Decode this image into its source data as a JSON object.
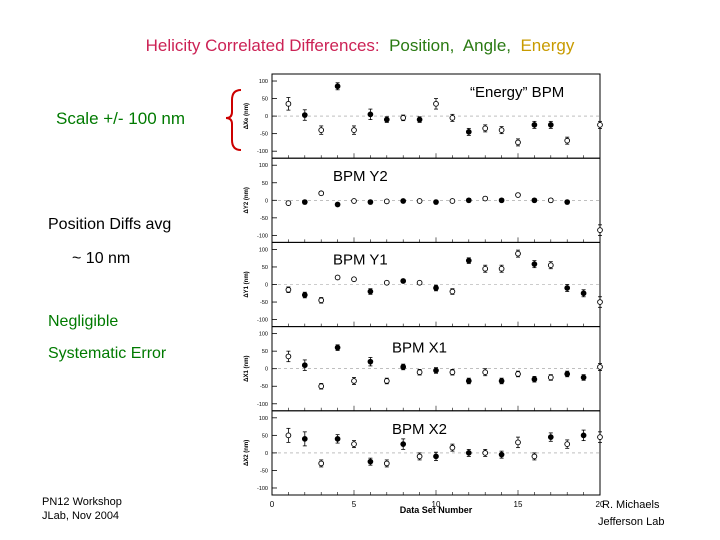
{
  "slide": {
    "title_part1": "Helicity Correlated Differences:",
    "title_part2": "Position,",
    "title_part3": "Angle,",
    "title_part4": "Energy",
    "scale_label": "Scale +/- 100 nm",
    "position_diffs": "Position Diffs avg",
    "approx_10nm": "~ 10 nm",
    "negligible": "Negligible",
    "systematic_error": "Systematic Error",
    "footer_left_line1": "PN12 Workshop",
    "footer_left_line2": "JLab, Nov 2004",
    "footer_right_line1": "R. Michaels",
    "footer_right_line2": "Jefferson Lab",
    "colors": {
      "title_pink": "#cc2255",
      "title_green": "#2a7a12",
      "title_gold": "#c89b00",
      "note_green": "#007a00",
      "bracket_red": "#cc0000"
    }
  },
  "chart_data": {
    "type": "scatter",
    "xlabel": "Data Set Number",
    "xlim": [
      0,
      20
    ],
    "x_ticks": [
      "0",
      "5",
      "10",
      "15",
      "20"
    ],
    "y_ticks": [
      "100",
      "50",
      "0",
      "-50",
      "-100"
    ],
    "ylim": [
      -120,
      120
    ],
    "panels": [
      {
        "annotation": "“Energy” BPM",
        "ylabel": "ΔXe (nm)",
        "points": [
          {
            "x": 1,
            "y": 35,
            "err": 18,
            "filled": false
          },
          {
            "x": 2,
            "y": 3,
            "err": 15,
            "filled": true
          },
          {
            "x": 3,
            "y": -40,
            "err": 12,
            "filled": false
          },
          {
            "x": 4,
            "y": 85,
            "err": 10,
            "filled": true
          },
          {
            "x": 5,
            "y": -40,
            "err": 12,
            "filled": false
          },
          {
            "x": 6,
            "y": 5,
            "err": 15,
            "filled": true
          },
          {
            "x": 7,
            "y": -10,
            "err": 8,
            "filled": true
          },
          {
            "x": 8,
            "y": -5,
            "err": 8,
            "filled": false
          },
          {
            "x": 9,
            "y": -10,
            "err": 8,
            "filled": true
          },
          {
            "x": 10,
            "y": 35,
            "err": 15,
            "filled": false
          },
          {
            "x": 11,
            "y": -5,
            "err": 10,
            "filled": false
          },
          {
            "x": 12,
            "y": -45,
            "err": 10,
            "filled": true
          },
          {
            "x": 13,
            "y": -35,
            "err": 10,
            "filled": false
          },
          {
            "x": 14,
            "y": -40,
            "err": 10,
            "filled": false
          },
          {
            "x": 15,
            "y": -75,
            "err": 10,
            "filled": false
          },
          {
            "x": 16,
            "y": -25,
            "err": 10,
            "filled": true
          },
          {
            "x": 17,
            "y": -25,
            "err": 10,
            "filled": true
          },
          {
            "x": 18,
            "y": -70,
            "err": 10,
            "filled": false
          },
          {
            "x": 20,
            "y": -25,
            "err": 10,
            "filled": false
          }
        ]
      },
      {
        "annotation": "BPM Y2",
        "ylabel": "ΔY2 (nm)",
        "points": [
          {
            "x": 1,
            "y": -8,
            "err": 5,
            "filled": false
          },
          {
            "x": 2,
            "y": -5,
            "err": 5,
            "filled": true
          },
          {
            "x": 3,
            "y": 20,
            "err": 5,
            "filled": false
          },
          {
            "x": 4,
            "y": -12,
            "err": 5,
            "filled": true
          },
          {
            "x": 5,
            "y": -2,
            "err": 5,
            "filled": false
          },
          {
            "x": 6,
            "y": -5,
            "err": 5,
            "filled": true
          },
          {
            "x": 7,
            "y": -3,
            "err": 5,
            "filled": false
          },
          {
            "x": 8,
            "y": -2,
            "err": 5,
            "filled": true
          },
          {
            "x": 9,
            "y": -2,
            "err": 5,
            "filled": false
          },
          {
            "x": 10,
            "y": -5,
            "err": 5,
            "filled": true
          },
          {
            "x": 11,
            "y": -2,
            "err": 5,
            "filled": false
          },
          {
            "x": 12,
            "y": 0,
            "err": 5,
            "filled": true
          },
          {
            "x": 13,
            "y": 5,
            "err": 5,
            "filled": false
          },
          {
            "x": 14,
            "y": 0,
            "err": 5,
            "filled": true
          },
          {
            "x": 15,
            "y": 15,
            "err": 5,
            "filled": false
          },
          {
            "x": 16,
            "y": 0,
            "err": 5,
            "filled": true
          },
          {
            "x": 17,
            "y": 0,
            "err": 5,
            "filled": false
          },
          {
            "x": 18,
            "y": -5,
            "err": 5,
            "filled": true
          },
          {
            "x": 20,
            "y": -85,
            "err": 15,
            "filled": false
          }
        ]
      },
      {
        "annotation": "BPM Y1",
        "ylabel": "ΔY1 (nm)",
        "points": [
          {
            "x": 1,
            "y": -15,
            "err": 8,
            "filled": false
          },
          {
            "x": 2,
            "y": -30,
            "err": 8,
            "filled": true
          },
          {
            "x": 3,
            "y": -45,
            "err": 8,
            "filled": false
          },
          {
            "x": 4,
            "y": 20,
            "err": 5,
            "filled": false
          },
          {
            "x": 5,
            "y": 15,
            "err": 5,
            "filled": false
          },
          {
            "x": 6,
            "y": -20,
            "err": 8,
            "filled": true
          },
          {
            "x": 7,
            "y": 5,
            "err": 5,
            "filled": false
          },
          {
            "x": 8,
            "y": 10,
            "err": 5,
            "filled": true
          },
          {
            "x": 9,
            "y": 5,
            "err": 5,
            "filled": false
          },
          {
            "x": 10,
            "y": -10,
            "err": 8,
            "filled": true
          },
          {
            "x": 11,
            "y": -20,
            "err": 8,
            "filled": false
          },
          {
            "x": 12,
            "y": 68,
            "err": 8,
            "filled": true
          },
          {
            "x": 13,
            "y": 45,
            "err": 10,
            "filled": false
          },
          {
            "x": 14,
            "y": 45,
            "err": 10,
            "filled": false
          },
          {
            "x": 15,
            "y": 88,
            "err": 10,
            "filled": false
          },
          {
            "x": 16,
            "y": 58,
            "err": 10,
            "filled": true
          },
          {
            "x": 17,
            "y": 55,
            "err": 10,
            "filled": false
          },
          {
            "x": 18,
            "y": -10,
            "err": 10,
            "filled": true
          },
          {
            "x": 19,
            "y": -25,
            "err": 10,
            "filled": true
          },
          {
            "x": 20,
            "y": -50,
            "err": 15,
            "filled": false
          }
        ]
      },
      {
        "annotation": "BPM X1",
        "ylabel": "ΔX1 (nm)",
        "points": [
          {
            "x": 1,
            "y": 35,
            "err": 15,
            "filled": false
          },
          {
            "x": 2,
            "y": 10,
            "err": 15,
            "filled": true
          },
          {
            "x": 3,
            "y": -50,
            "err": 8,
            "filled": false
          },
          {
            "x": 4,
            "y": 60,
            "err": 8,
            "filled": true
          },
          {
            "x": 5,
            "y": -35,
            "err": 10,
            "filled": false
          },
          {
            "x": 6,
            "y": 20,
            "err": 12,
            "filled": true
          },
          {
            "x": 7,
            "y": -35,
            "err": 8,
            "filled": false
          },
          {
            "x": 8,
            "y": 5,
            "err": 8,
            "filled": true
          },
          {
            "x": 9,
            "y": -10,
            "err": 8,
            "filled": false
          },
          {
            "x": 10,
            "y": -5,
            "err": 8,
            "filled": true
          },
          {
            "x": 11,
            "y": -10,
            "err": 8,
            "filled": false
          },
          {
            "x": 12,
            "y": -35,
            "err": 8,
            "filled": true
          },
          {
            "x": 13,
            "y": -10,
            "err": 10,
            "filled": false
          },
          {
            "x": 14,
            "y": -35,
            "err": 8,
            "filled": true
          },
          {
            "x": 15,
            "y": -15,
            "err": 8,
            "filled": false
          },
          {
            "x": 16,
            "y": -30,
            "err": 8,
            "filled": true
          },
          {
            "x": 17,
            "y": -25,
            "err": 8,
            "filled": false
          },
          {
            "x": 18,
            "y": -15,
            "err": 8,
            "filled": true
          },
          {
            "x": 19,
            "y": -25,
            "err": 8,
            "filled": true
          },
          {
            "x": 20,
            "y": 5,
            "err": 10,
            "filled": false
          }
        ]
      },
      {
        "annotation": "BPM X2",
        "ylabel": "ΔX2 (nm)",
        "points": [
          {
            "x": 1,
            "y": 50,
            "err": 20,
            "filled": false
          },
          {
            "x": 2,
            "y": 40,
            "err": 20,
            "filled": true
          },
          {
            "x": 3,
            "y": -30,
            "err": 10,
            "filled": false
          },
          {
            "x": 4,
            "y": 40,
            "err": 12,
            "filled": true
          },
          {
            "x": 5,
            "y": 25,
            "err": 10,
            "filled": false
          },
          {
            "x": 6,
            "y": -25,
            "err": 10,
            "filled": true
          },
          {
            "x": 7,
            "y": -30,
            "err": 10,
            "filled": false
          },
          {
            "x": 8,
            "y": 25,
            "err": 15,
            "filled": true
          },
          {
            "x": 9,
            "y": -10,
            "err": 10,
            "filled": false
          },
          {
            "x": 10,
            "y": -10,
            "err": 12,
            "filled": true
          },
          {
            "x": 11,
            "y": 15,
            "err": 10,
            "filled": false
          },
          {
            "x": 12,
            "y": 0,
            "err": 10,
            "filled": true
          },
          {
            "x": 13,
            "y": 0,
            "err": 10,
            "filled": false
          },
          {
            "x": 14,
            "y": -5,
            "err": 10,
            "filled": true
          },
          {
            "x": 15,
            "y": 30,
            "err": 15,
            "filled": false
          },
          {
            "x": 16,
            "y": -10,
            "err": 10,
            "filled": false
          },
          {
            "x": 17,
            "y": 45,
            "err": 12,
            "filled": true
          },
          {
            "x": 18,
            "y": 25,
            "err": 12,
            "filled": false
          },
          {
            "x": 19,
            "y": 50,
            "err": 15,
            "filled": true
          },
          {
            "x": 20,
            "y": 45,
            "err": 15,
            "filled": false
          }
        ]
      }
    ]
  }
}
